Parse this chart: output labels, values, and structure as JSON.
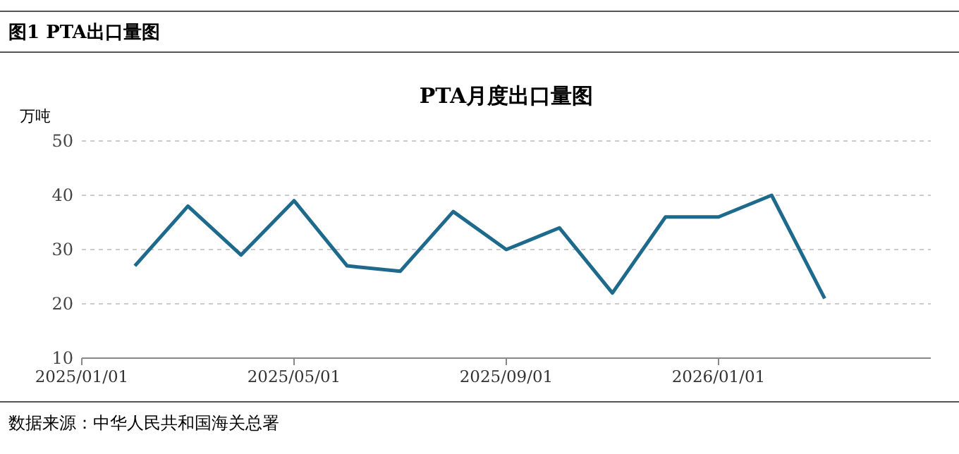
{
  "chart_data": {
    "type": "line",
    "title": "图1 PTA出口量图",
    "subtitle": "PTA月度出口量图",
    "ylabel": "万吨",
    "annotations": [
      "数据来源：中华人民共和国海关总署"
    ],
    "x": [
      "2025-02",
      "2025-03",
      "2025-04",
      "2025-05",
      "2025-06",
      "2025-07",
      "2025-08",
      "2025-09",
      "2025-10",
      "2025-11",
      "2025-12",
      "2026-01",
      "2026-02",
      "2026-03"
    ],
    "series": [
      {
        "color": "#1d6a8c",
        "values": [
          27,
          38,
          29,
          39,
          27,
          26,
          37,
          30,
          34,
          22,
          36,
          36,
          40,
          21
        ]
      }
    ],
    "xlim": [
      "2025-01",
      "2026-05"
    ],
    "xticks": [
      {
        "value": "2025-01",
        "label": "2025/01/01"
      },
      {
        "value": "2025-05",
        "label": "2025/05/01"
      },
      {
        "value": "2025-09",
        "label": "2025/09/01"
      },
      {
        "value": "2026-01",
        "label": "2026/01/01"
      }
    ],
    "ylim": [
      10,
      50
    ],
    "yticks": [
      10,
      20,
      30,
      40,
      50
    ],
    "grid": "y",
    "marker": "none",
    "line_style": "solid"
  }
}
